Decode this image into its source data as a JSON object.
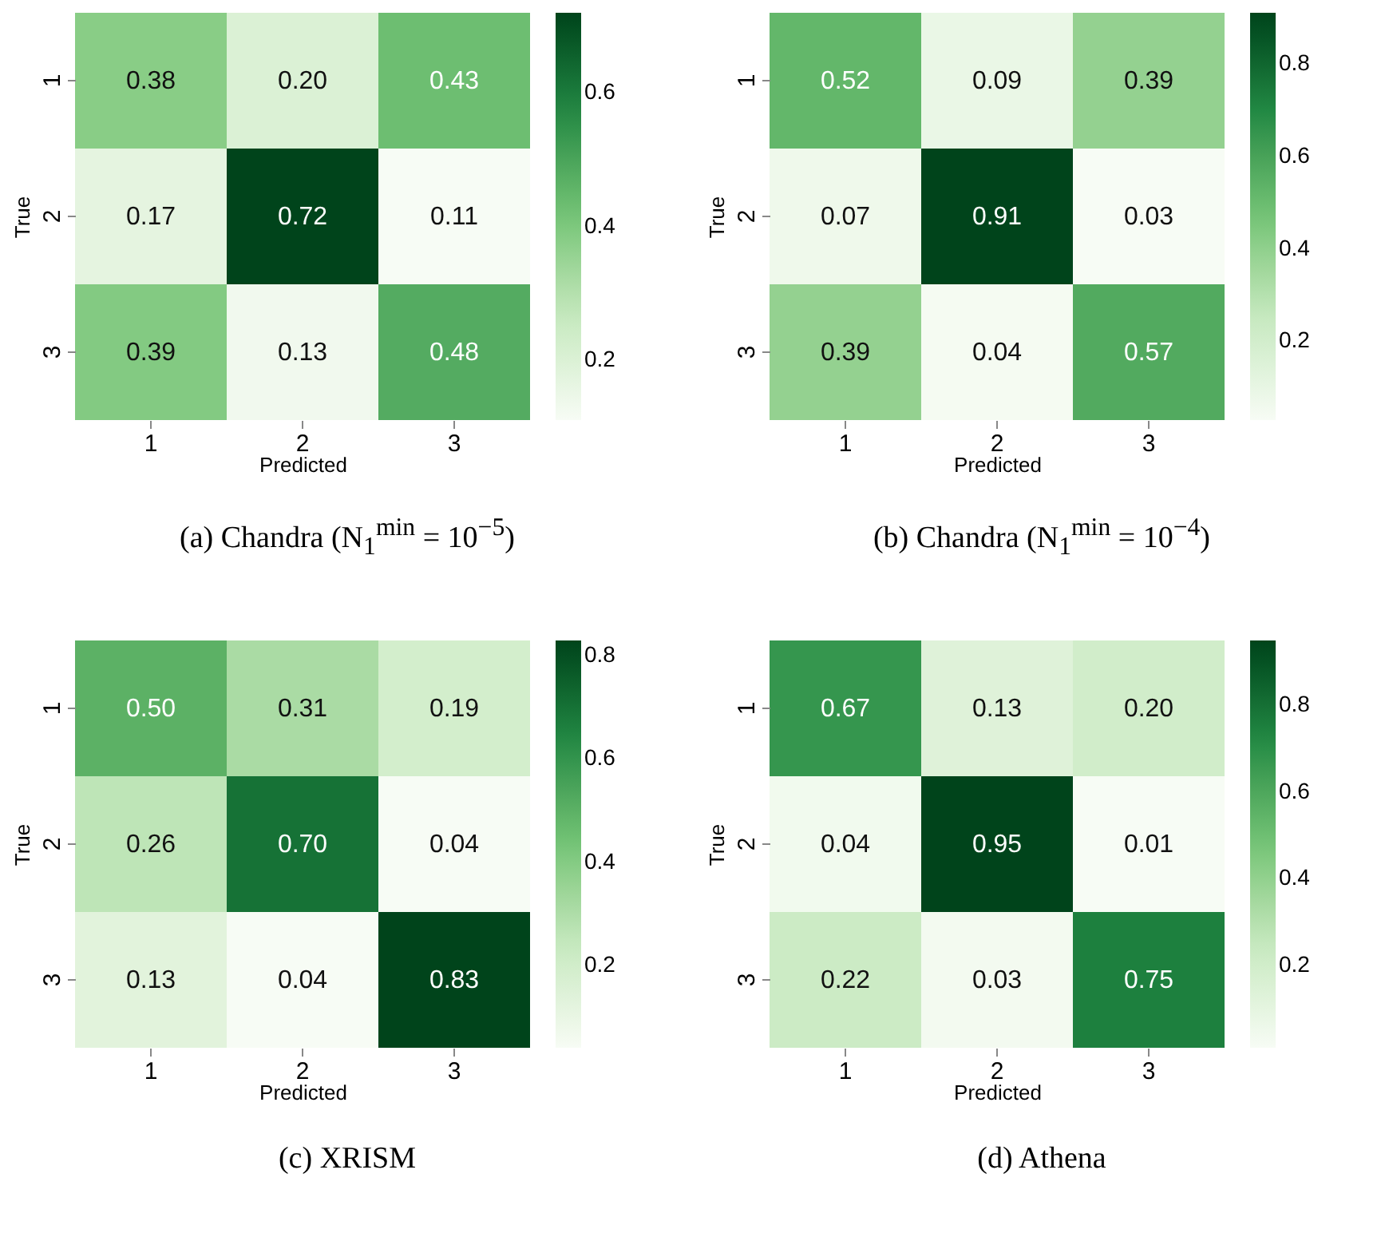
{
  "chart_data": [
    {
      "type": "heatmap",
      "title": "(a) Chandra (N$_{1}$$^{min}$ = 10$^{−5}$)",
      "xlabel": "Predicted",
      "ylabel": "True",
      "categories": [
        "1",
        "2",
        "3"
      ],
      "y_categories": [
        "1",
        "2",
        "3"
      ],
      "cells": [
        [
          0.38,
          0.2,
          0.43
        ],
        [
          0.17,
          0.72,
          0.11
        ],
        [
          0.39,
          0.13,
          0.48
        ]
      ],
      "cell_labels": [
        [
          "0.38",
          "0.20",
          "0.43"
        ],
        [
          "0.17",
          "0.72",
          "0.11"
        ],
        [
          "0.39",
          "0.13",
          "0.48"
        ]
      ],
      "clim": [
        0.11,
        0.72
      ],
      "cticks": [
        0.2,
        0.4,
        0.6
      ]
    },
    {
      "type": "heatmap",
      "title": "(b) Chandra (N$_{1}$$^{min}$ = 10$^{−4}$)",
      "xlabel": "Predicted",
      "ylabel": "True",
      "categories": [
        "1",
        "2",
        "3"
      ],
      "y_categories": [
        "1",
        "2",
        "3"
      ],
      "cells": [
        [
          0.52,
          0.09,
          0.39
        ],
        [
          0.07,
          0.91,
          0.03
        ],
        [
          0.39,
          0.04,
          0.57
        ]
      ],
      "cell_labels": [
        [
          "0.52",
          "0.09",
          "0.39"
        ],
        [
          "0.07",
          "0.91",
          "0.03"
        ],
        [
          "0.39",
          "0.04",
          "0.57"
        ]
      ],
      "clim": [
        0.03,
        0.91
      ],
      "cticks": [
        0.2,
        0.4,
        0.6,
        0.8
      ]
    },
    {
      "type": "heatmap",
      "title": "(c) XRISM",
      "xlabel": "Predicted",
      "ylabel": "True",
      "categories": [
        "1",
        "2",
        "3"
      ],
      "y_categories": [
        "1",
        "2",
        "3"
      ],
      "cells": [
        [
          0.5,
          0.31,
          0.19
        ],
        [
          0.26,
          0.7,
          0.04
        ],
        [
          0.13,
          0.04,
          0.83
        ]
      ],
      "cell_labels": [
        [
          "0.50",
          "0.31",
          "0.19"
        ],
        [
          "0.26",
          "0.70",
          "0.04"
        ],
        [
          "0.13",
          "0.04",
          "0.83"
        ]
      ],
      "clim": [
        0.04,
        0.83
      ],
      "cticks": [
        0.2,
        0.4,
        0.6,
        0.8
      ]
    },
    {
      "type": "heatmap",
      "title": "(d) Athena",
      "xlabel": "Predicted",
      "ylabel": "True",
      "categories": [
        "1",
        "2",
        "3"
      ],
      "y_categories": [
        "1",
        "2",
        "3"
      ],
      "cells": [
        [
          0.67,
          0.13,
          0.2
        ],
        [
          0.04,
          0.95,
          0.01
        ],
        [
          0.22,
          0.03,
          0.75
        ]
      ],
      "cell_labels": [
        [
          "0.67",
          "0.13",
          "0.20"
        ],
        [
          "0.04",
          "0.95",
          "0.01"
        ],
        [
          "0.22",
          "0.03",
          "0.75"
        ]
      ],
      "clim": [
        0.01,
        0.95
      ],
      "cticks": [
        0.2,
        0.4,
        0.6,
        0.8
      ]
    }
  ]
}
